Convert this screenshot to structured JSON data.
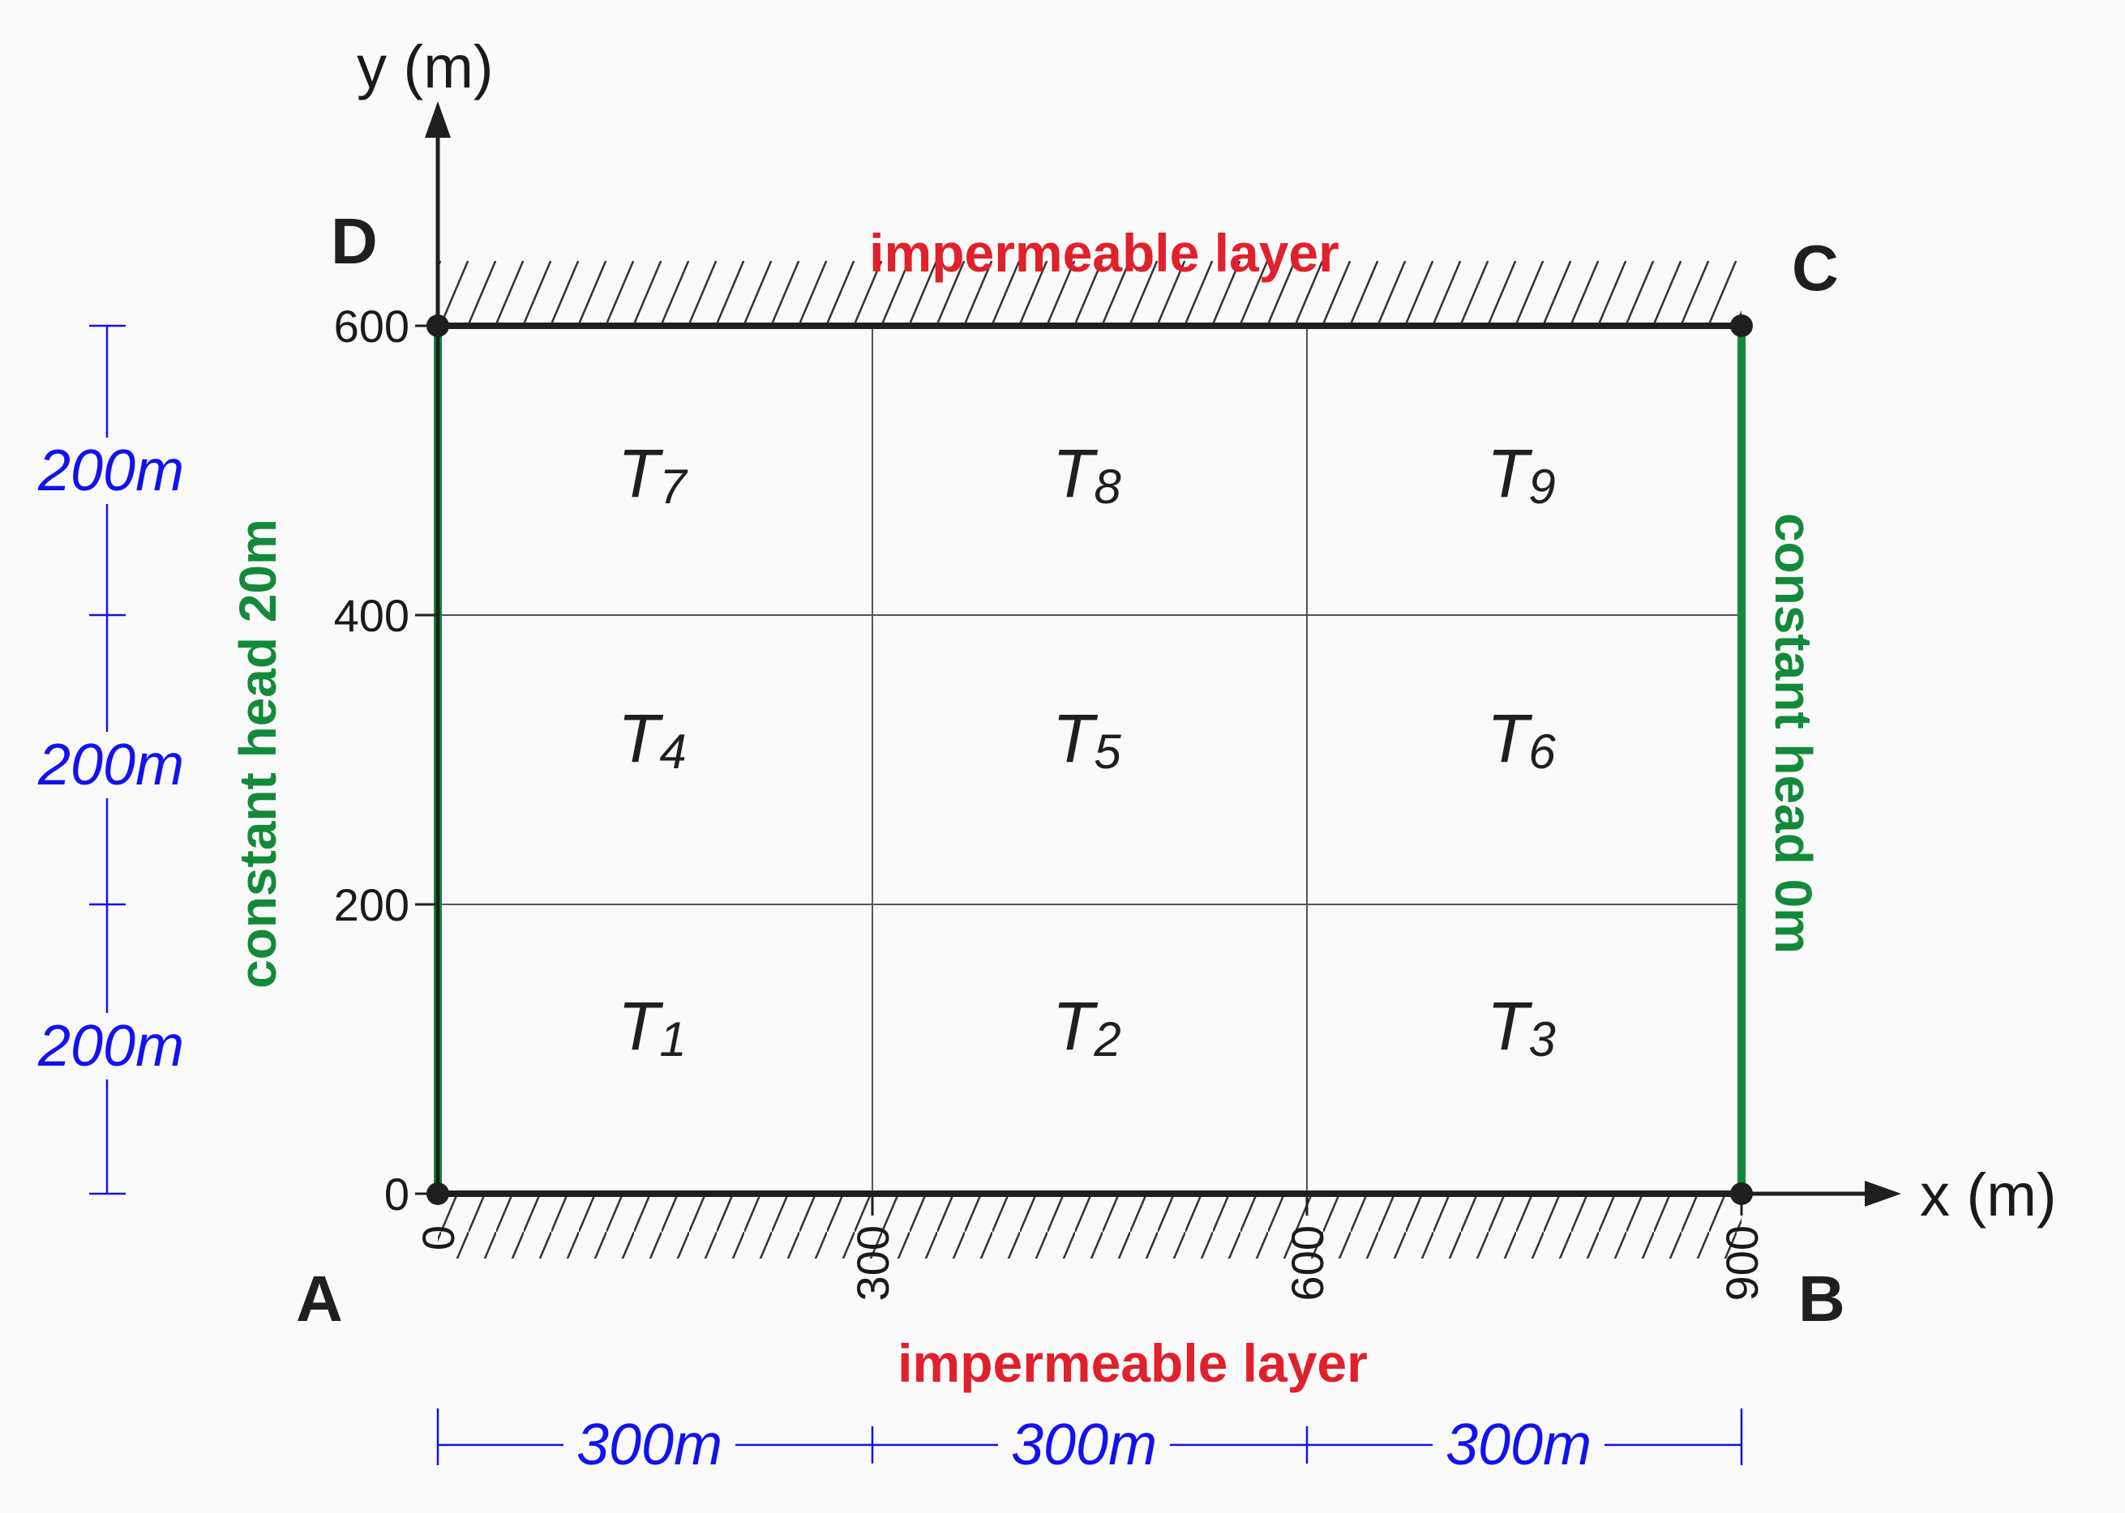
{
  "axes": {
    "x_label": "x (m)",
    "y_label": "y (m)",
    "x_ticks": [
      "0",
      "300",
      "600",
      "900"
    ],
    "y_ticks": [
      "0",
      "200",
      "400",
      "600"
    ]
  },
  "corners": {
    "A": "A",
    "B": "B",
    "C": "C",
    "D": "D"
  },
  "boundaries": {
    "top": "impermeable layer",
    "bottom": "impermeable layer",
    "left": "constant head 20m",
    "right": "constant head 0m"
  },
  "dimensions": {
    "horizontal": [
      "300m",
      "300m",
      "300m"
    ],
    "vertical": [
      "200m",
      "200m",
      "200m"
    ]
  },
  "zones": [
    {
      "base": "T",
      "sub": "1"
    },
    {
      "base": "T",
      "sub": "2"
    },
    {
      "base": "T",
      "sub": "3"
    },
    {
      "base": "T",
      "sub": "4"
    },
    {
      "base": "T",
      "sub": "5"
    },
    {
      "base": "T",
      "sub": "6"
    },
    {
      "base": "T",
      "sub": "7"
    },
    {
      "base": "T",
      "sub": "8"
    },
    {
      "base": "T",
      "sub": "9"
    }
  ],
  "colors": {
    "impermeable": "#e0202b",
    "constant_head": "#138a3a",
    "dimension": "#1212ee",
    "outline": "#1f1f1f",
    "grid": "#555555"
  }
}
